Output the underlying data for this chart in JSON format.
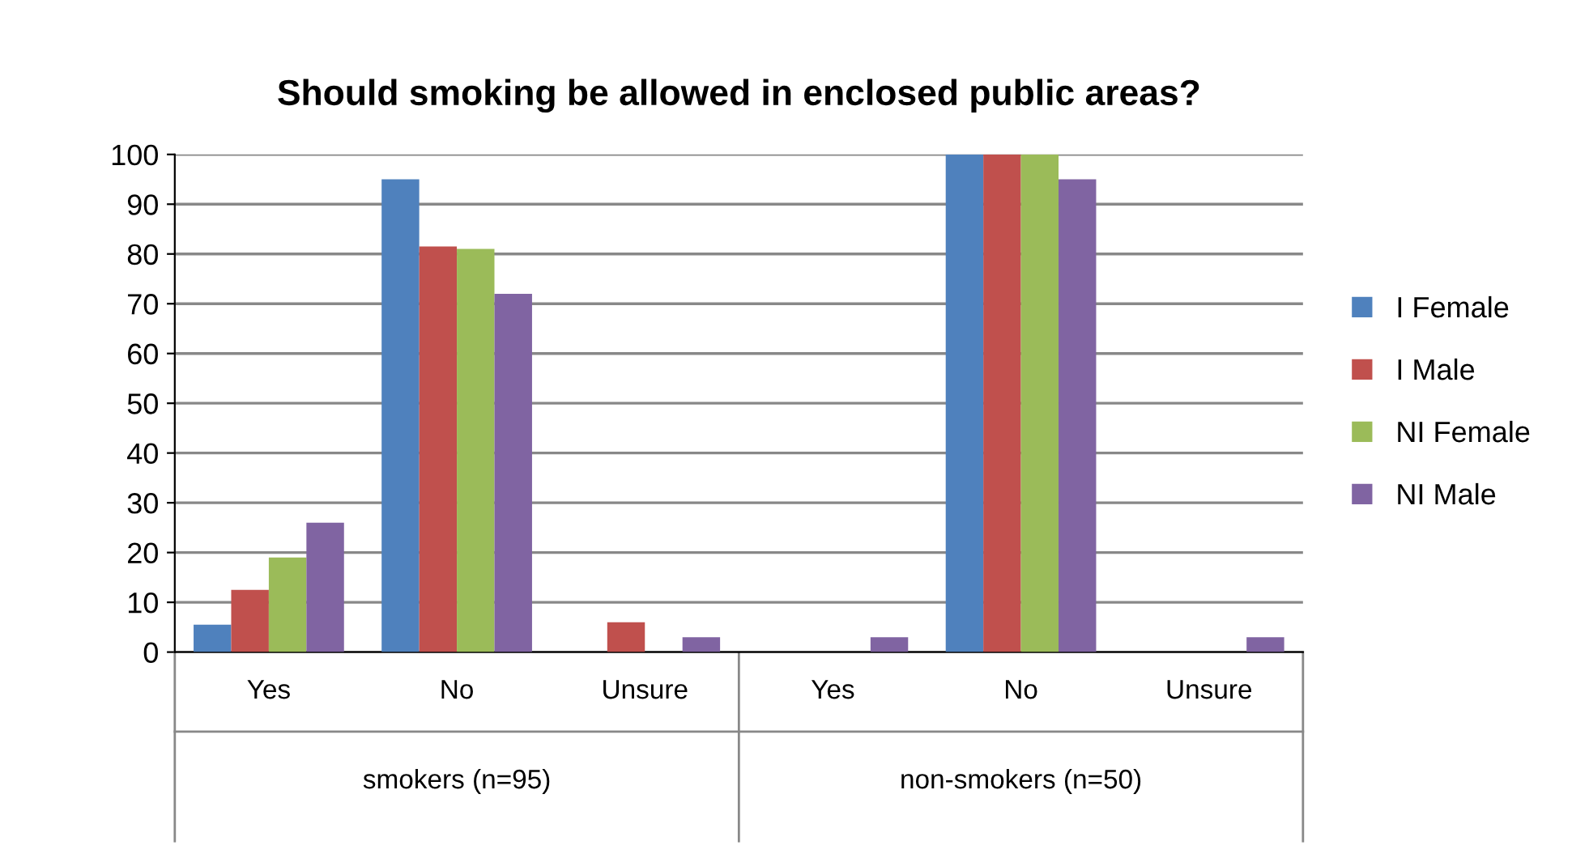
{
  "chart_data": {
    "type": "bar",
    "title": "Should smoking be allowed in enclosed public areas?",
    "categories": [
      "Yes",
      "No",
      "Unsure",
      "Yes",
      "No",
      "Unsure"
    ],
    "series": [
      {
        "name": "I Female",
        "color": "#4f81bd",
        "values": [
          5.5,
          95,
          null,
          null,
          100,
          null
        ]
      },
      {
        "name": "I Male",
        "color": "#c0504d",
        "values": [
          12.5,
          81.5,
          6,
          null,
          100,
          null
        ]
      },
      {
        "name": "NI Female",
        "color": "#9bbb59",
        "values": [
          19,
          81,
          null,
          null,
          100,
          null
        ]
      },
      {
        "name": "NI Male",
        "color": "#8064a2",
        "values": [
          26,
          72,
          3,
          3,
          95,
          3
        ]
      }
    ],
    "annotations": [
      "smokers (n=95)",
      "non-smokers (n=50)"
    ],
    "ylim": [
      0,
      100
    ],
    "yticks": [
      0,
      10,
      20,
      30,
      40,
      50,
      60,
      70,
      80,
      90,
      100
    ],
    "grid": "y",
    "legend": "right"
  }
}
